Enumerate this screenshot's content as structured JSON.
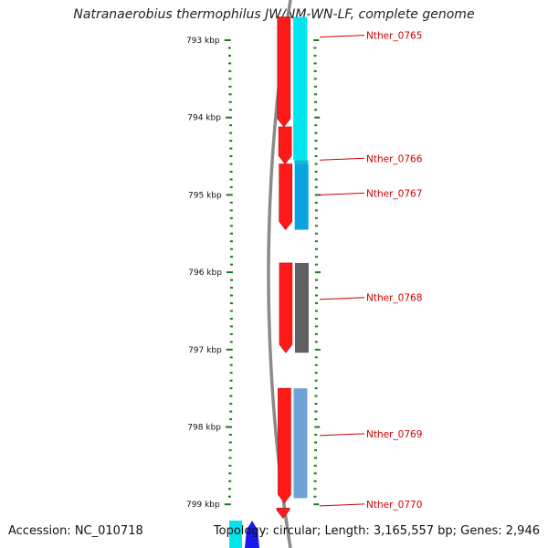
{
  "title": "Natranaerobius thermophilus JW/NM-WN-LF, complete genome",
  "footer": {
    "accession": "Accession: NC_010718",
    "summary": "Topology: circular; Length: 3,165,557 bp; Genes: 2,946"
  },
  "colors": {
    "tick": "#1a7a1a",
    "cds": "#ff1a1a",
    "backbone": "#8a8a8a",
    "label": "#cc0000"
  },
  "ruler": {
    "start_kbp": 793,
    "end_kbp": 799,
    "labels": [
      "793 kbp",
      "794 kbp",
      "795 kbp",
      "796 kbp",
      "797 kbp",
      "798 kbp",
      "799 kbp"
    ]
  },
  "cds_red": [
    {
      "start": 792.7,
      "end": 794.12
    },
    {
      "start": 794.12,
      "end": 794.6
    },
    {
      "start": 794.6,
      "end": 795.45
    },
    {
      "start": 795.88,
      "end": 797.04
    },
    {
      "start": 797.5,
      "end": 798.98
    },
    {
      "start": 799.05,
      "end": 799.18
    }
  ],
  "features_right": [
    {
      "start": 792.7,
      "end": 794.55,
      "color": "#00e5ee"
    },
    {
      "start": 794.55,
      "end": 794.6,
      "color": "#00bfd8"
    },
    {
      "start": 794.6,
      "end": 795.45,
      "color": "#0aa5e0"
    },
    {
      "start": 795.88,
      "end": 797.04,
      "color": "#606060"
    },
    {
      "start": 797.5,
      "end": 798.92,
      "color": "#6fa3d6"
    }
  ],
  "gene_labels": [
    {
      "name": "Nther_0765",
      "pos": 792.96
    },
    {
      "name": "Nther_0766",
      "pos": 794.55
    },
    {
      "name": "Nther_0767",
      "pos": 795.0
    },
    {
      "name": "Nther_0768",
      "pos": 796.35
    },
    {
      "name": "Nther_0769",
      "pos": 798.11
    },
    {
      "name": "Nther_0770",
      "pos": 799.02
    }
  ],
  "bottom_features": [
    {
      "name": "cyan-feature",
      "color": "#00e5ee"
    },
    {
      "name": "blue-feature",
      "color": "#1a1aee"
    }
  ]
}
